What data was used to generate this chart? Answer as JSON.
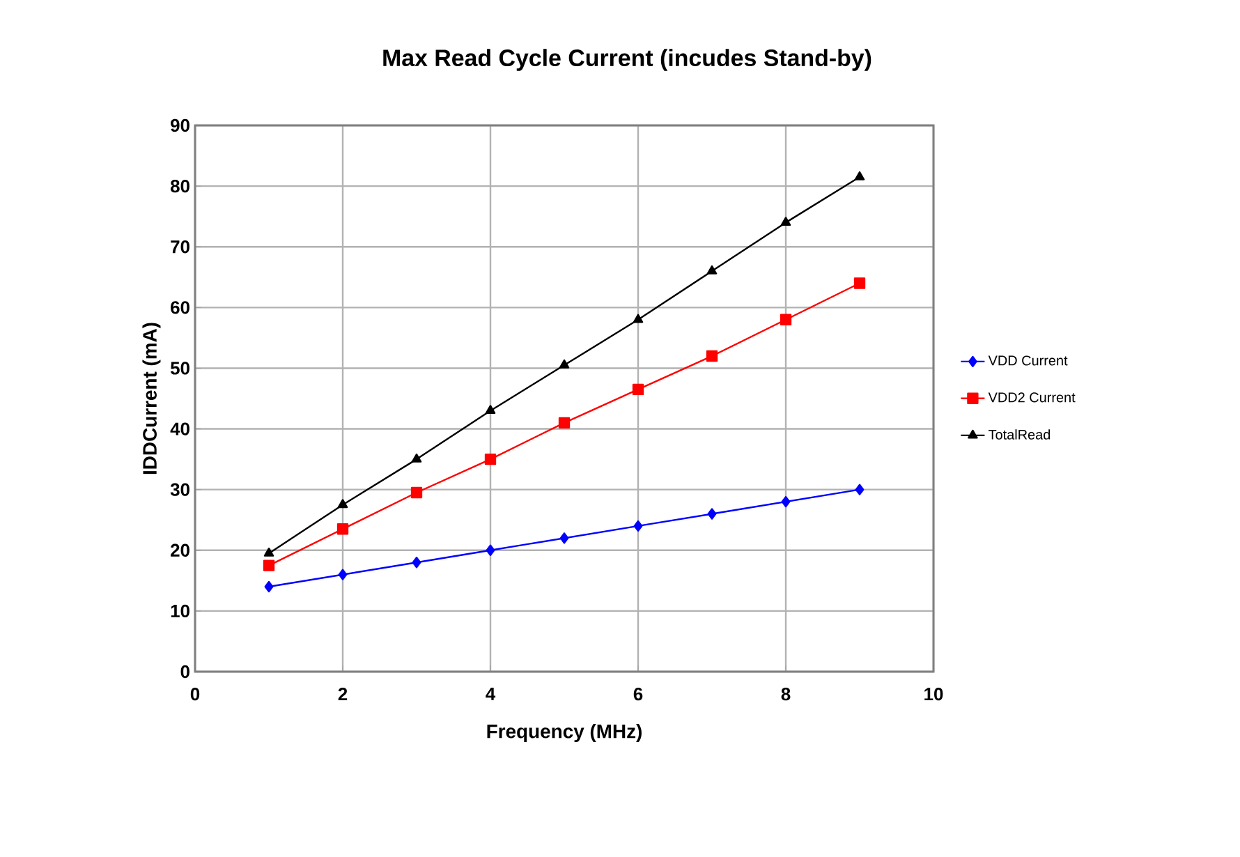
{
  "chart_data": {
    "type": "line",
    "title": "Max Read Cycle Current (incudes Stand-by)",
    "xlabel": "Frequency (MHz)",
    "ylabel": "IDDCurrent (mA)",
    "x": [
      1,
      2,
      3,
      4,
      5,
      6,
      7,
      8,
      9
    ],
    "series": [
      {
        "name": "VDD Current",
        "color": "#0000ff",
        "marker": "diamond",
        "values": [
          14,
          16,
          18,
          20,
          22,
          24,
          26,
          28,
          30
        ]
      },
      {
        "name": "VDD2 Current",
        "color": "#ff0000",
        "marker": "square",
        "values": [
          17.5,
          23.5,
          29.5,
          35,
          41,
          46.5,
          52,
          58,
          64
        ]
      },
      {
        "name": "TotalRead",
        "color": "#000000",
        "marker": "triangle",
        "values": [
          19.5,
          27.5,
          35,
          43,
          50.5,
          58,
          66,
          74,
          81.5
        ]
      }
    ],
    "xlim": [
      0,
      10
    ],
    "xticks": [
      0,
      2,
      4,
      6,
      8,
      10
    ],
    "ylim": [
      0,
      90
    ],
    "yticks": [
      0,
      10,
      20,
      30,
      40,
      50,
      60,
      70,
      80,
      90
    ],
    "grid": true,
    "legend": "right"
  }
}
